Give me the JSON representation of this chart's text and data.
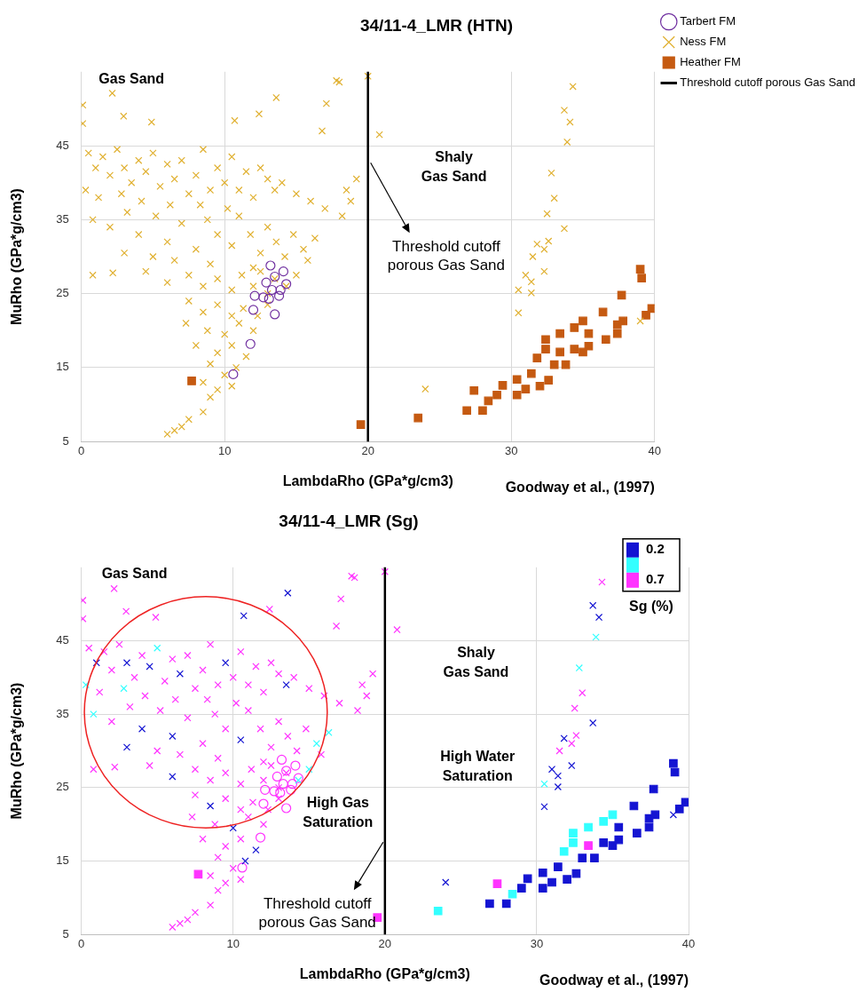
{
  "chart_data": [
    {
      "type": "scatter",
      "title": "34/11-4_LMR (HTN)",
      "xlabel": "LambdaRho (GPa*g/cm3)",
      "ylabel": "MuRho (GPa*g/cm3)",
      "xlim": [
        0,
        40
      ],
      "ylim": [
        5,
        55
      ],
      "xticks": [
        0,
        10,
        20,
        30,
        40
      ],
      "yticks": [
        5,
        15,
        25,
        35,
        45
      ],
      "grid": true,
      "legend": "top right",
      "series": [
        {
          "name": "Tarbert FM",
          "color": "#7030a0",
          "marker": "circle",
          "x": [
            13.2,
            14.1,
            12.9,
            13.5,
            14.3,
            13.3,
            13.8,
            12.7,
            12.1,
            13.5,
            12.0,
            11.8,
            10.6,
            13.9,
            13.1
          ],
          "values": [
            28.8,
            28.0,
            26.5,
            27.3,
            26.3,
            25.5,
            24.7,
            24.5,
            24.7,
            22.2,
            22.8,
            18.2,
            14.1,
            25.5,
            24.3
          ]
        },
        {
          "name": "Ness FM",
          "color": "#e0b030",
          "marker": "cross",
          "x": [
            2.16,
            2.95,
            4.9,
            10.7,
            12.4,
            13.6,
            17.1,
            16.8,
            17.8,
            20.0,
            0.1,
            0.1,
            20.8,
            18.0,
            0.5,
            1,
            1.5,
            2,
            2.5,
            3,
            3.5,
            4,
            4.5,
            5,
            5.5,
            6,
            6.5,
            7,
            7.5,
            8,
            8.5,
            9,
            9.5,
            10,
            10.5,
            11,
            11.5,
            12,
            12.5,
            13,
            13.5,
            14,
            15,
            16,
            0.3,
            1.2,
            2.8,
            4.2,
            6.2,
            8.3,
            17,
            18.5,
            19.2,
            18.2,
            18.8,
            0.8,
            2,
            3.2,
            4,
            5.2,
            6,
            7,
            8,
            8.8,
            9.5,
            10.5,
            11,
            11.8,
            12.5,
            13,
            13.6,
            14.2,
            14.8,
            15.5,
            16.3,
            3,
            5,
            6.5,
            9,
            10.2,
            12,
            15.8,
            0.8,
            2.2,
            4.5,
            6,
            7.5,
            8.5,
            9.5,
            10.5,
            11.2,
            12,
            12.5,
            13.5,
            14.3,
            15,
            13,
            7.5,
            8.5,
            9.5,
            10.5,
            11.3,
            12.3,
            13,
            7.3,
            8.8,
            10,
            11,
            12,
            8,
            9.5,
            10.5,
            11.5,
            9,
            10,
            10.8,
            8.5,
            9.5,
            10.5,
            9,
            8.5,
            7.5,
            7,
            6.5,
            6,
            34.3,
            33.7,
            34.1,
            33.9,
            32.8,
            33.0,
            32.5,
            33.7,
            32.6,
            31.8,
            31.5,
            32.3,
            31.0,
            32.3,
            31.4,
            30.5,
            31.4,
            30.5,
            24.0,
            39.0
          ],
          "values": [
            52.1,
            49.0,
            48.2,
            48.4,
            49.3,
            51.5,
            50.7,
            47.0,
            53.8,
            54.4,
            50.5,
            48.0,
            46.5,
            53.6,
            44,
            42,
            43.5,
            41,
            44.5,
            42,
            40,
            43,
            41.5,
            44,
            39.5,
            42.5,
            40.5,
            43,
            38.5,
            41,
            44.5,
            39,
            42,
            40,
            43.5,
            39,
            41.5,
            38,
            42,
            40.5,
            39,
            40,
            38.5,
            37.5,
            39,
            38,
            38.5,
            37.5,
            37,
            37,
            36.5,
            39,
            40.5,
            35.5,
            37.5,
            35,
            34,
            36,
            33,
            35.5,
            32,
            34.5,
            31,
            35,
            33,
            31.5,
            35.5,
            33,
            30.5,
            34,
            32,
            30,
            33,
            31,
            32.5,
            30.5,
            30,
            29.5,
            29,
            36.5,
            28.5,
            29.5,
            27.5,
            27.8,
            28,
            26.5,
            27.5,
            26,
            27,
            25.5,
            27.5,
            26,
            28,
            27,
            26,
            27.5,
            25,
            24,
            22.5,
            23.5,
            22,
            23,
            22,
            23.5,
            21,
            20,
            19.5,
            21,
            20,
            18,
            17,
            18,
            16.5,
            15.5,
            14,
            15,
            13,
            12,
            12.5,
            11,
            9,
            8,
            7,
            6.5,
            6,
            53.0,
            49.8,
            48.2,
            45.5,
            41.3,
            37.9,
            35.8,
            33.8,
            32.1,
            31.7,
            30.0,
            31.0,
            27.5,
            28.0,
            26.6,
            25.5,
            25.1,
            22.4,
            12.1,
            21.3
          ]
        },
        {
          "name": "Heather FM",
          "color": "#c55a11",
          "marker": "square",
          "x": [
            7.7,
            19.5,
            23.5,
            26.9,
            27.4,
            28.4,
            29.4,
            30.4,
            30.4,
            31.4,
            31.8,
            32.4,
            33.4,
            34.4,
            35.0,
            33.8,
            32.6,
            35.4,
            36.4,
            37.4,
            37.7,
            37.8,
            39.0,
            39.1,
            39.4,
            39.8,
            34.4,
            35.4,
            36.6,
            37.4,
            29.0,
            33.0,
            32.0,
            28.0,
            31.0,
            33.4,
            35.0,
            32.4
          ],
          "values": [
            13.2,
            7.3,
            8.2,
            9.2,
            11.9,
            10.5,
            12.6,
            13.4,
            11.3,
            14.2,
            16.3,
            17.5,
            19.6,
            20.4,
            21.3,
            15.4,
            13.3,
            19.6,
            22.5,
            20.8,
            24.8,
            21.3,
            28.3,
            27.1,
            22.1,
            23.0,
            17.5,
            17.9,
            18.8,
            19.6,
            11.3,
            15.4,
            12.5,
            9.2,
            12.1,
            17.1,
            17.1,
            18.8
          ]
        }
      ],
      "ref_lines": [
        {
          "axis": "x",
          "value": 20,
          "label": "Threshold cutoff porous Gas Sand",
          "color": "#000000"
        }
      ],
      "annotations": [
        "Gas Sand",
        "Shaly Gas Sand",
        "Goodway et al., (1997)"
      ]
    },
    {
      "type": "scatter",
      "title": "34/11-4_LMR (Sg)",
      "xlabel": "LambdaRho (GPa*g/cm3)",
      "ylabel": "MuRho (GPa*g/cm3)",
      "xlim": [
        0,
        40
      ],
      "ylim": [
        5,
        55
      ],
      "xticks": [
        0,
        10,
        20,
        30,
        40
      ],
      "yticks": [
        5,
        15,
        25,
        35,
        45
      ],
      "grid": true,
      "legend": "top right",
      "legend_title": "Sg (%)",
      "series": [
        {
          "name": "0.2",
          "color": "#1414d2",
          "marker": "cross",
          "x": [
            10.7,
            13.6,
            1,
            3,
            4.5,
            6.5,
            9.5,
            13.5,
            4,
            6,
            10.5,
            3,
            6,
            8.5,
            10,
            11.5,
            10.8,
            33.7,
            34.1,
            33.7,
            31.8,
            31.0,
            32.3,
            31.4,
            31.4,
            30.5,
            24.0,
            39.0
          ],
          "values": [
            48.4,
            51.5,
            42,
            42,
            41.5,
            40.5,
            42,
            39,
            33,
            32,
            31.5,
            30.5,
            26.5,
            22.5,
            19.5,
            16.5,
            15,
            49.8,
            48.2,
            33.8,
            31.7,
            27.5,
            28.0,
            26.6,
            25.1,
            22.4,
            12.1,
            21.3
          ]
        },
        {
          "color": "#1414d2",
          "marker": "square",
          "x": [
            26.9,
            29.4,
            30.4,
            30.4,
            31.4,
            33.8,
            32.6,
            35.4,
            36.4,
            37.4,
            37.7,
            37.8,
            39.0,
            39.1,
            39.4,
            39.8,
            34.4,
            35.4,
            36.6,
            37.4,
            29.0,
            33.0,
            32.0,
            28.0,
            31.0,
            35.0
          ],
          "values": [
            9.2,
            12.6,
            13.4,
            11.3,
            14.2,
            15.4,
            13.3,
            19.6,
            22.5,
            20.8,
            24.8,
            21.3,
            28.3,
            27.1,
            22.1,
            23.0,
            17.5,
            17.9,
            18.8,
            19.6,
            11.3,
            15.4,
            12.5,
            9.2,
            12.1,
            17.1
          ]
        },
        {
          "color": "#33ffff",
          "marker": "cross",
          "x": [
            5,
            0.3,
            2.8,
            0.8,
            15.5,
            16.3,
            14.3,
            15,
            33.9,
            32.8,
            30.5
          ],
          "values": [
            44,
            39,
            38.5,
            35,
            31,
            32.5,
            26,
            27.5,
            45.5,
            41.3,
            25.5
          ]
        },
        {
          "color": "#33ffff",
          "marker": "square",
          "x": [
            23.5,
            28.4,
            31.8,
            32.4,
            33.4,
            34.4,
            35.0,
            32.4
          ],
          "values": [
            8.2,
            10.5,
            16.3,
            17.5,
            19.6,
            20.4,
            21.3,
            18.8
          ]
        },
        {
          "name": "0.7",
          "color": "#ff33ff",
          "marker": "cross",
          "x": [
            2.16,
            2.95,
            4.9,
            12.4,
            17.1,
            16.8,
            17.8,
            20.0,
            0.1,
            0.1,
            20.8,
            18.0,
            0.5,
            1.5,
            2,
            2.5,
            3.5,
            4,
            5.5,
            6,
            7,
            7.5,
            8,
            8.5,
            9,
            10,
            10.5,
            11,
            11.5,
            12,
            12.5,
            13,
            14,
            15,
            16,
            1.2,
            4.2,
            6.2,
            8.3,
            17,
            18.5,
            19.2,
            18.2,
            18.8,
            2,
            3.2,
            5.2,
            7,
            8,
            8.8,
            9.5,
            11,
            11.8,
            12.5,
            13,
            13.6,
            14.2,
            14.8,
            5,
            6.5,
            9,
            10.2,
            12,
            15.8,
            0.8,
            2.2,
            4.5,
            7.5,
            8.5,
            9.5,
            10.5,
            11.2,
            12,
            12.5,
            13.5,
            13,
            7.5,
            9.5,
            10.5,
            11.3,
            12.3,
            13,
            7.3,
            8.8,
            11,
            12,
            8,
            9.5,
            10.5,
            9,
            10,
            8.5,
            9.5,
            10.5,
            9,
            8.5,
            7.5,
            7,
            6.5,
            6,
            34.3,
            33.0,
            32.5,
            32.6,
            31.5,
            32.3
          ],
          "values": [
            52.1,
            49.0,
            48.2,
            49.3,
            50.7,
            47.0,
            53.8,
            54.4,
            50.5,
            48.0,
            46.5,
            53.6,
            44,
            43.5,
            41,
            44.5,
            40,
            43,
            39.5,
            42.5,
            43,
            38.5,
            41,
            44.5,
            39,
            40,
            43.5,
            39,
            41.5,
            38,
            42,
            40.5,
            40,
            38.5,
            37.5,
            38,
            37.5,
            37,
            37,
            36.5,
            39,
            40.5,
            35.5,
            37.5,
            34,
            36,
            35.5,
            34.5,
            31,
            35,
            33,
            35.5,
            33,
            30.5,
            34,
            32,
            30,
            33,
            30,
            29.5,
            29,
            36.5,
            28.5,
            29.5,
            27.5,
            27.8,
            28,
            27.5,
            26,
            27,
            25.5,
            27.5,
            26,
            28,
            27,
            25,
            24,
            23.5,
            22,
            23,
            22,
            23.5,
            21,
            20,
            21,
            20,
            18,
            17,
            18,
            15.5,
            14,
            13,
            12,
            12.5,
            11,
            9,
            8,
            7,
            6.5,
            6,
            53.0,
            37.9,
            35.8,
            32.1,
            30.0,
            31.0
          ]
        },
        {
          "color": "#ff33ff",
          "marker": "square",
          "x": [
            7.7,
            19.5,
            27.4,
            33.4
          ],
          "values": [
            13.2,
            7.3,
            11.9,
            17.1
          ]
        },
        {
          "color": "#ff33ff",
          "marker": "circle",
          "x": [
            13.2,
            14.1,
            12.9,
            13.5,
            14.3,
            13.3,
            13.8,
            12.7,
            12.1,
            13.5,
            12.0,
            11.8,
            10.6,
            13.9,
            13.1
          ],
          "values": [
            28.8,
            28.0,
            26.5,
            27.3,
            26.3,
            25.5,
            24.7,
            24.5,
            24.7,
            22.2,
            22.8,
            18.2,
            14.1,
            25.5,
            24.3
          ]
        }
      ],
      "ref_lines": [
        {
          "axis": "x",
          "value": 20,
          "label": "Threshold cutoff porous Gas Sand",
          "color": "#000000"
        }
      ],
      "annotations": [
        "Gas Sand",
        "Shaly Gas Sand",
        "High Water Saturation",
        "High Gas Saturation",
        "Goodway et al., (1997)"
      ]
    }
  ]
}
